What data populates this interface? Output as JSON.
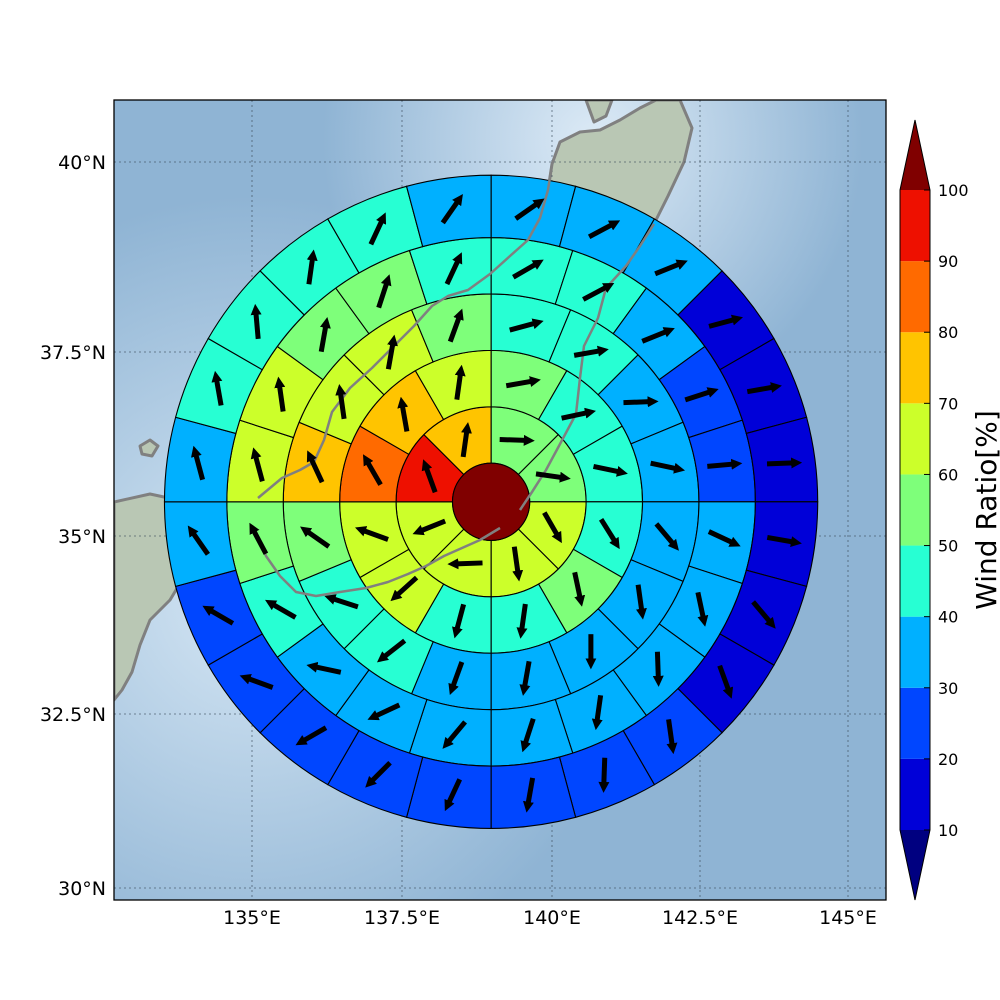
{
  "map": {
    "lon_range": [
      132.65,
      145.65
    ],
    "lat_range": [
      29.8,
      40.85
    ],
    "center": {
      "lon": 139.0,
      "lat": 35.3
    },
    "ring_radii_deg": [
      0.65,
      1.6,
      2.55,
      3.5,
      4.45,
      5.5
    ],
    "sectors_per_ring": [
      0,
      8,
      12,
      16,
      20,
      24
    ],
    "gridlines": {
      "lon": [
        135.0,
        137.5,
        140.0,
        142.5,
        145.0
      ],
      "lat": [
        30.0,
        32.5,
        35.0,
        37.5,
        40.0
      ]
    },
    "lon_tick_labels": [
      "135°E",
      "137.5°E",
      "140°E",
      "142.5°E",
      "145°E"
    ],
    "lat_tick_labels": [
      "30°N",
      "32.5°N",
      "35°N",
      "37.5°N",
      "40°N"
    ]
  },
  "chart_data": {
    "type": "heatmap",
    "layout": "polar-sector",
    "center_value": 100,
    "rings": [
      {
        "ring": 1,
        "sector_start": "north-clockwise",
        "values": [
          55,
          55,
          65,
          65,
          65,
          65,
          90,
          75
        ],
        "wind_dir_to_deg": [
          92,
          98,
          150,
          172,
          268,
          248,
          340,
          8
        ]
      },
      {
        "ring": 2,
        "sector_start": "north-clockwise",
        "values": [
          55,
          45,
          45,
          45,
          55,
          45,
          45,
          65,
          65,
          85,
          75,
          65
        ],
        "wind_dir_to_deg": [
          80,
          78,
          102,
          148,
          168,
          188,
          195,
          228,
          290,
          330,
          350,
          8
        ]
      },
      {
        "ring": 3,
        "sector_start": "north-clockwise",
        "values": [
          45,
          45,
          35,
          35,
          35,
          35,
          35,
          35,
          35,
          45,
          45,
          55,
          75,
          65,
          65,
          55
        ],
        "wind_dir_to_deg": [
          75,
          80,
          88,
          102,
          140,
          172,
          180,
          190,
          200,
          232,
          288,
          305,
          335,
          352,
          10,
          20
        ]
      },
      {
        "ring": 4,
        "sector_start": "north-clockwise",
        "values": [
          45,
          45,
          35,
          25,
          25,
          35,
          35,
          35,
          35,
          35,
          35,
          35,
          35,
          45,
          55,
          65,
          65,
          55,
          55,
          45
        ],
        "wind_dir_to_deg": [
          60,
          62,
          68,
          72,
          85,
          115,
          168,
          178,
          188,
          198,
          220,
          245,
          282,
          300,
          332,
          345,
          352,
          10,
          18,
          25
        ]
      },
      {
        "ring": 5,
        "sector_start": "north-clockwise",
        "values": [
          35,
          35,
          35,
          15,
          15,
          15,
          15,
          15,
          15,
          25,
          25,
          25,
          25,
          25,
          25,
          25,
          25,
          35,
          35,
          45,
          45,
          45,
          45,
          35
        ],
        "wind_dir_to_deg": [
          55,
          62,
          68,
          75,
          80,
          88,
          100,
          140,
          160,
          172,
          182,
          190,
          205,
          225,
          240,
          290,
          300,
          325,
          345,
          350,
          355,
          8,
          25,
          35
        ]
      }
    ]
  },
  "colorbar": {
    "title": "Wind Ratio[%]",
    "ticks": [
      "10",
      "20",
      "30",
      "40",
      "50",
      "60",
      "70",
      "80",
      "90",
      "100"
    ],
    "levels": [
      10,
      20,
      30,
      40,
      50,
      60,
      70,
      80,
      90,
      100
    ],
    "colors": [
      "#0000d8",
      "#0046ff",
      "#00b0ff",
      "#27ffd3",
      "#7eff7a",
      "#ccff2a",
      "#ffc400",
      "#ff6a00",
      "#ee1000"
    ],
    "under_color": "#000080",
    "over_color": "#800000"
  }
}
